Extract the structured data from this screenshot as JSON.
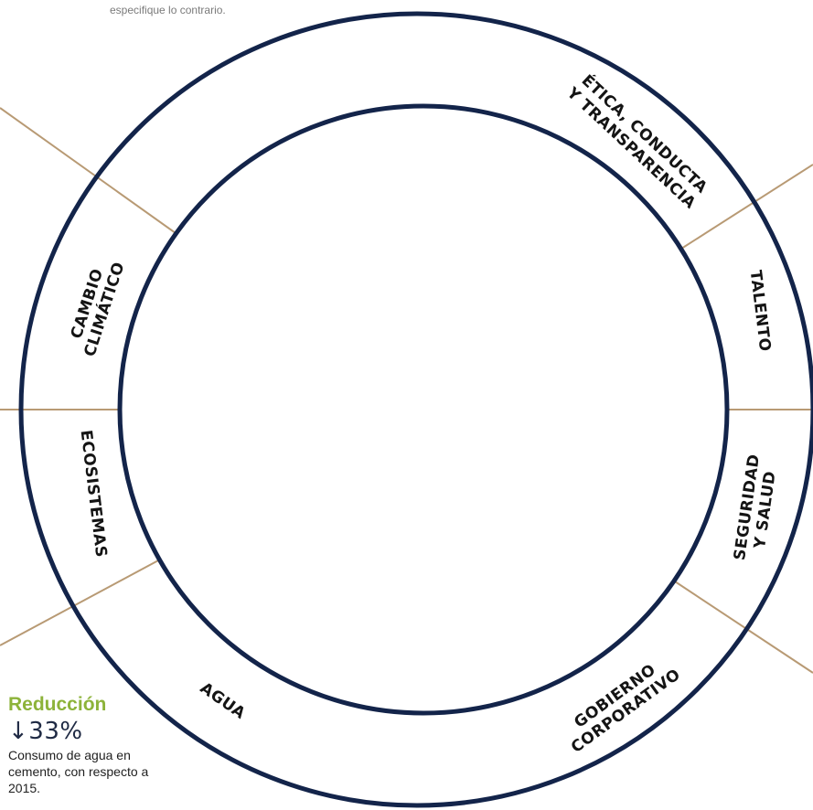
{
  "note": "especifique lo contrario.",
  "wheel": {
    "ring_color": "#13244a",
    "divider_color": "#b89a74",
    "segments": [
      "ÉTICA, CONDUCTA",
      "Y TRANSPARENCIA",
      "TALENTO",
      "SEGURIDAD",
      "Y SALUD",
      "GOBIERNO",
      "CORPORATIVO",
      "AGUA",
      "ECOSISTEMAS",
      "CAMBIO",
      "CLIMÁTICO"
    ]
  },
  "stat": {
    "title": "Reducción",
    "value": "↓33%",
    "description": "Consumo de agua en cemento, con respecto a 2015."
  }
}
